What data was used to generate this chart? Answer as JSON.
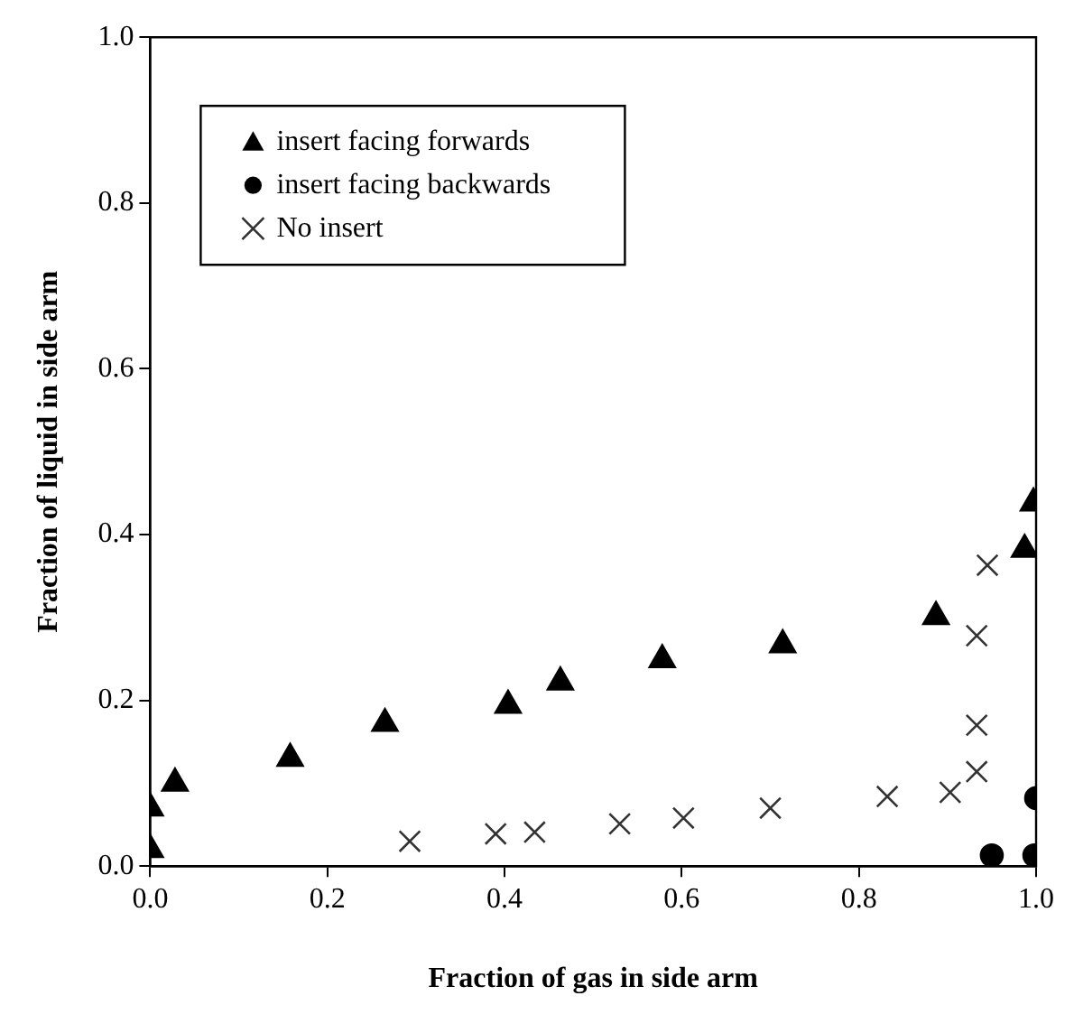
{
  "chart_data": {
    "type": "scatter",
    "xlabel": "Fraction of gas in side arm",
    "ylabel": "Fraction of liquid in side arm",
    "xlim": [
      0,
      1
    ],
    "ylim": [
      0,
      1
    ],
    "xticks": [
      {
        "value": 0,
        "label": "0.0"
      },
      {
        "value": 0.2,
        "label": "0.2"
      },
      {
        "value": 0.4,
        "label": "0.4"
      },
      {
        "value": 0.6,
        "label": "0.6"
      },
      {
        "value": 0.8,
        "label": "0.8"
      },
      {
        "value": 1,
        "label": "1.0"
      }
    ],
    "yticks": [
      {
        "value": 0,
        "label": "0.0"
      },
      {
        "value": 0.2,
        "label": "0.2"
      },
      {
        "value": 0.4,
        "label": "0.4"
      },
      {
        "value": 0.6,
        "label": "0.6"
      },
      {
        "value": 0.8,
        "label": "0.8"
      },
      {
        "value": 1,
        "label": "1.0"
      }
    ],
    "grid": false,
    "legend": "top left",
    "series": [
      {
        "name": "insert facing forwards",
        "color": "#000000",
        "marker": "triangle",
        "x": [
          0.0,
          0.0,
          0.028,
          0.158,
          0.265,
          0.404,
          0.463,
          0.578,
          0.714,
          0.887,
          0.987,
          0.997
        ],
        "values": [
          0.02,
          0.07,
          0.1,
          0.13,
          0.172,
          0.194,
          0.222,
          0.249,
          0.267,
          0.301,
          0.382,
          0.438
        ]
      },
      {
        "name": "insert facing backwards",
        "color": "#000000",
        "marker": "circle",
        "x": [
          0.95,
          0.998,
          1.0
        ],
        "values": [
          0.013,
          0.013,
          0.082
        ]
      },
      {
        "name": "No insert",
        "color": "#333333",
        "marker": "cross",
        "x": [
          0.293,
          0.39,
          0.434,
          0.53,
          0.602,
          0.7,
          0.832,
          0.903,
          0.933,
          0.933,
          0.933,
          0.945
        ],
        "values": [
          0.03,
          0.039,
          0.041,
          0.051,
          0.058,
          0.07,
          0.084,
          0.089,
          0.114,
          0.17,
          0.278,
          0.363
        ]
      }
    ]
  }
}
